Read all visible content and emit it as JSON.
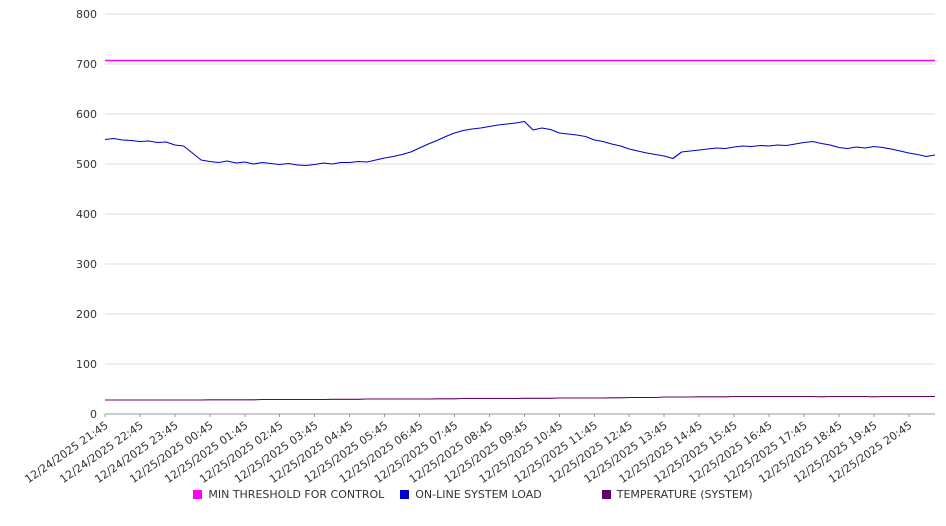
{
  "chart_data": {
    "type": "line",
    "title": "",
    "xlabel": "",
    "ylabel": "",
    "ylim": [
      0,
      800
    ],
    "yticks": [
      0,
      100,
      200,
      300,
      400,
      500,
      600,
      700,
      800
    ],
    "grid": true,
    "legend_position": "bottom",
    "tick_every": 4,
    "x": [
      "12/24/2025 21:45",
      "12/24/2025 22:45",
      "12/24/2025 23:45",
      "12/25/2025 00:45",
      "12/25/2025 01:45",
      "12/25/2025 02:45",
      "12/25/2025 03:45",
      "12/25/2025 04:45",
      "12/25/2025 05:45",
      "12/25/2025 06:45",
      "12/25/2025 07:45",
      "12/25/2025 08:45",
      "12/25/2025 09:45",
      "12/25/2025 10:45",
      "12/25/2025 11:45",
      "12/25/2025 12:45",
      "12/25/2025 13:45",
      "12/25/2025 14:45",
      "12/25/2025 15:45",
      "12/25/2025 16:45",
      "12/25/2025 17:45",
      "12/25/2025 18:45",
      "12/25/2025 19:45",
      "12/25/2025 20:45"
    ],
    "series": [
      {
        "name": "MIN THRESHOLD FOR CONTROL",
        "color": "#ff00ff",
        "constant": 707
      },
      {
        "name": "ON-LINE SYSTEM LOAD",
        "color": "#0000cc",
        "values": [
          549,
          551,
          548,
          547,
          545,
          546,
          543,
          544,
          538,
          536,
          522,
          508,
          505,
          503,
          506,
          502,
          504,
          500,
          503,
          501,
          499,
          501,
          498,
          497,
          499,
          502,
          500,
          503,
          503,
          505,
          504,
          508,
          512,
          515,
          519,
          524,
          532,
          540,
          547,
          555,
          562,
          567,
          570,
          572,
          575,
          578,
          580,
          582,
          585,
          568,
          572,
          569,
          562,
          560,
          558,
          555,
          548,
          545,
          540,
          536,
          530,
          526,
          522,
          519,
          516,
          511,
          524,
          526,
          528,
          530,
          532,
          531,
          534,
          536,
          535,
          537,
          536,
          538,
          537,
          540,
          543,
          545,
          541,
          538,
          533,
          531,
          534,
          532,
          535,
          533,
          530,
          526,
          522,
          519,
          515,
          518
        ]
      },
      {
        "name": "TEMPERATURE (SYSTEM)",
        "color": "#660066",
        "values": [
          28,
          28,
          28,
          28,
          28,
          28,
          28,
          28,
          28,
          28,
          28,
          28,
          28.5,
          28.5,
          28.5,
          28.5,
          28.5,
          28.5,
          29,
          29,
          29,
          29,
          29,
          29,
          29,
          29,
          29.5,
          29.5,
          29.5,
          29.5,
          30,
          30,
          30,
          30,
          30,
          30,
          30,
          30,
          30.5,
          30.5,
          30.5,
          31,
          31,
          31,
          31,
          31,
          31,
          31,
          31.5,
          31.5,
          31.5,
          31.5,
          32,
          32,
          32,
          32,
          32,
          32,
          32.5,
          32.5,
          33,
          33,
          33,
          33,
          34,
          34,
          34,
          34,
          34.5,
          34.5,
          34.5,
          34.5,
          35,
          35,
          35,
          35,
          35,
          35,
          35,
          35,
          35,
          35,
          34.5,
          35,
          35,
          35,
          35,
          35,
          34.5,
          35,
          35,
          35,
          35,
          35,
          35,
          35
        ]
      }
    ]
  },
  "legend": {
    "items": [
      "MIN THRESHOLD FOR CONTROL",
      "ON-LINE SYSTEM LOAD",
      "TEMPERATURE (SYSTEM)"
    ]
  }
}
